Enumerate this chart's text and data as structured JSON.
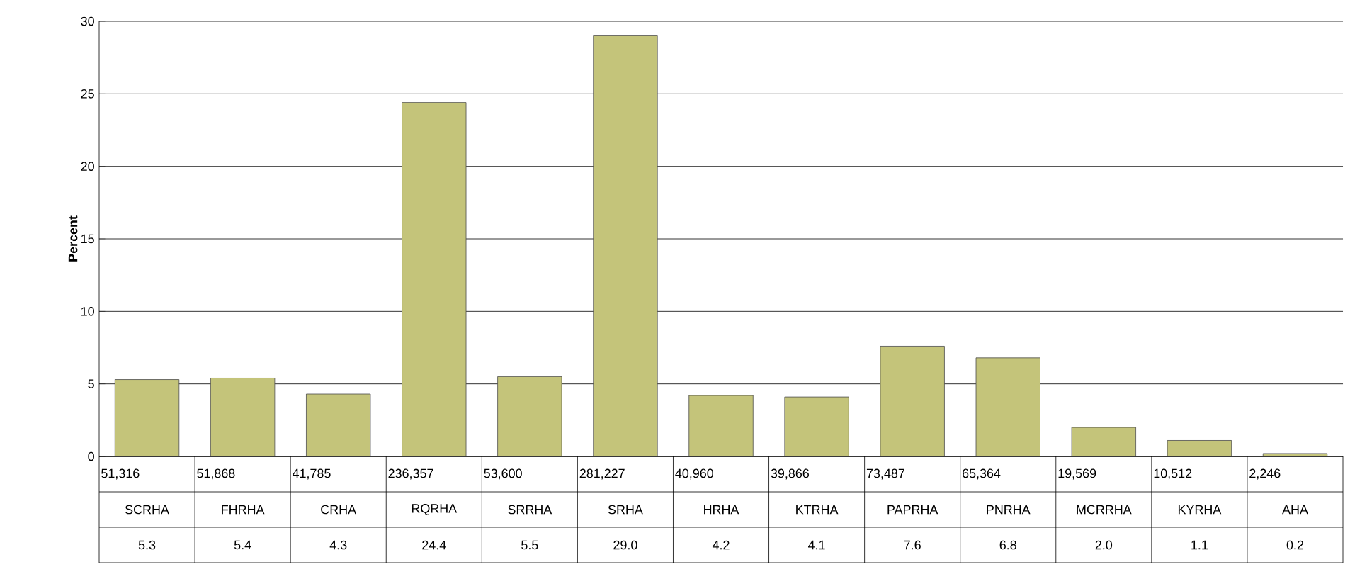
{
  "chart_data": {
    "type": "bar",
    "ylabel": "Percent",
    "categories": [
      "SCRHA",
      "FHRHA",
      "CRHA",
      "RQRHA",
      "SRRHA",
      "SRHA",
      "HRHA",
      "KTRHA",
      "PAPRHA",
      "PNRHA",
      "MCRRHA",
      "KYRHA",
      "AHA"
    ],
    "values": [
      5.3,
      5.4,
      4.3,
      24.4,
      5.5,
      29.0,
      4.2,
      4.1,
      7.6,
      6.8,
      2.0,
      1.1,
      0.2
    ],
    "value_labels": [
      "5.3",
      "5.4",
      "4.3",
      "24.4",
      "5.5",
      "29.0",
      "4.2",
      "4.1",
      "7.6",
      "6.8",
      "2.0",
      "1.1",
      "0.2"
    ],
    "color": "#c4c47a",
    "ylim": [
      0,
      30
    ],
    "yticks": [
      0,
      5,
      10,
      15,
      20,
      25,
      30
    ],
    "grid": "y",
    "annotations": [
      "51,316",
      "51,868",
      "41,785",
      "236,357",
      "53,600",
      "281,227",
      "40,960",
      "39,866",
      "73,487",
      "65,364",
      "19,569",
      "10,512",
      "2,246"
    ]
  }
}
